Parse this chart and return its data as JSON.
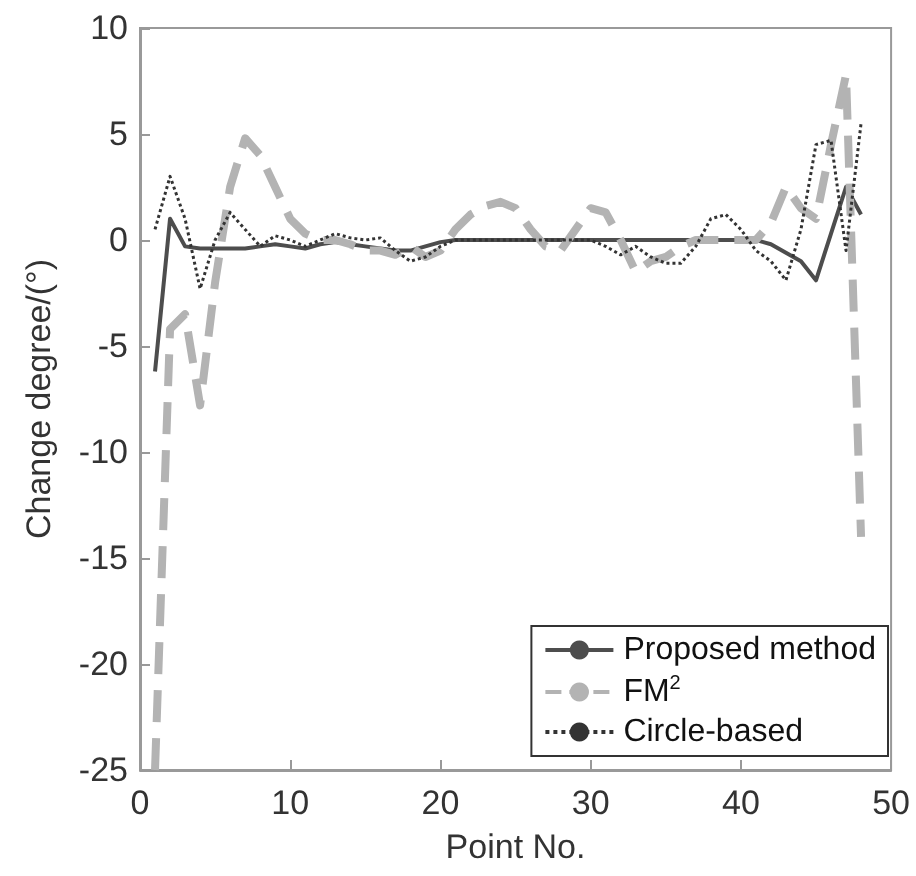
{
  "chart_data": {
    "type": "line",
    "xlabel": "Point No.",
    "ylabel": "Change degree/(°)",
    "x": [
      1,
      2,
      3,
      4,
      5,
      6,
      7,
      8,
      9,
      10,
      11,
      12,
      13,
      14,
      15,
      16,
      17,
      18,
      19,
      20,
      21,
      22,
      23,
      24,
      25,
      26,
      27,
      28,
      29,
      30,
      31,
      32,
      33,
      34,
      35,
      36,
      37,
      38,
      39,
      40,
      41,
      42,
      43,
      44,
      45,
      46,
      47,
      48
    ],
    "series": [
      {
        "name": "Proposed method",
        "color": "#4d4d4d",
        "line_style": "solid",
        "values": [
          -6.2,
          1.0,
          -0.3,
          -0.4,
          -0.4,
          -0.4,
          -0.4,
          -0.3,
          -0.2,
          -0.3,
          -0.4,
          -0.2,
          -0.1,
          -0.2,
          -0.3,
          -0.4,
          -0.5,
          -0.5,
          -0.3,
          -0.1,
          0,
          0,
          0,
          0,
          0,
          0,
          0,
          0,
          0,
          0,
          0,
          0,
          0,
          0,
          0,
          0,
          0,
          0,
          0,
          0,
          0,
          -0.2,
          -0.6,
          -1.0,
          -1.9,
          0.3,
          2.5,
          1.2
        ]
      },
      {
        "name": "FM$^{2}$",
        "color": "#b3b3b3",
        "line_style": "dashed",
        "values": [
          -25,
          -4.2,
          -3.5,
          -7.8,
          -2,
          2.5,
          4.8,
          4,
          2.5,
          1,
          0.3,
          0,
          0,
          -0.2,
          -0.5,
          -0.5,
          -0.7,
          -0.3,
          -0.8,
          -0.5,
          0.5,
          1.2,
          1.6,
          1.8,
          1.5,
          0.5,
          -0.3,
          -0.5,
          0.5,
          1.5,
          1.3,
          0,
          -1.5,
          -1.0,
          -0.8,
          -0.3,
          0,
          0,
          0,
          0,
          0,
          0.8,
          2.5,
          1.5,
          1,
          4.5,
          7.8,
          -14
        ]
      },
      {
        "name": "Circle-based",
        "color": "#333333",
        "line_style": "dotted",
        "values": [
          0.5,
          3.0,
          1.0,
          -2.3,
          0,
          1.3,
          0.5,
          -0.3,
          0.2,
          0,
          -0.3,
          0,
          0.3,
          0.1,
          0,
          0.1,
          -0.5,
          -1.0,
          -0.8,
          -0.3,
          0,
          0,
          0,
          0,
          0,
          0,
          0,
          0,
          0,
          0,
          -0.3,
          -0.7,
          -0.3,
          -0.8,
          -1.1,
          -1.1,
          -0.3,
          1.0,
          1.2,
          0.5,
          -0.5,
          -1.0,
          -1.9,
          0.5,
          4.5,
          4.7,
          -0.5,
          5.5
        ]
      }
    ],
    "xlim": [
      0,
      50
    ],
    "xticks": [
      0,
      10,
      20,
      30,
      40,
      50
    ],
    "ylim": [
      -25,
      10
    ],
    "yticks": [
      -25,
      -20,
      -15,
      -10,
      -5,
      0,
      5,
      10
    ],
    "grid": false,
    "legend": "bottom right",
    "marker": "none"
  }
}
